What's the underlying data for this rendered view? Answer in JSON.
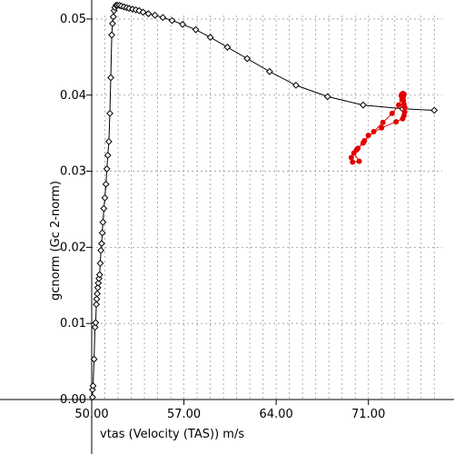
{
  "chart_data": {
    "type": "line",
    "xlabel": "vtas (Velocity (TAS)) m/s",
    "ylabel": "gcnorm (Gc 2-norm)",
    "xlim": [
      50.0,
      76.6
    ],
    "ylim": [
      0.0,
      0.0525
    ],
    "x_ticks": [
      "50.00",
      "57.00",
      "64.00",
      "71.00"
    ],
    "y_ticks": [
      "0.00",
      "0.01",
      "0.02",
      "0.03",
      "0.04",
      "0.05"
    ],
    "grid": {
      "x_minor_dashed": true,
      "y_major_dashed": true
    },
    "series": [
      {
        "color": "#000000",
        "marker": "diamond-open",
        "x": [
          50.06,
          50.06,
          50.1,
          50.18,
          50.25,
          50.3,
          50.35,
          50.38,
          50.42,
          50.46,
          50.5,
          50.55,
          50.6,
          50.65,
          50.7,
          50.75,
          50.8,
          50.85,
          50.92,
          51.0,
          51.08,
          51.15,
          51.22,
          51.3,
          51.38,
          51.45,
          51.52,
          51.58,
          51.64,
          51.7,
          51.76,
          51.85,
          51.95,
          52.1,
          52.25,
          52.45,
          52.65,
          52.85,
          53.1,
          53.35,
          53.6,
          53.9,
          54.3,
          54.8,
          55.4,
          56.1,
          56.9,
          57.9,
          59.0,
          60.3,
          61.8,
          63.5,
          65.5,
          67.9,
          70.6,
          73.6,
          76.0
        ],
        "y": [
          0.0003,
          0.0013,
          0.0018,
          0.0053,
          0.0095,
          0.0101,
          0.0125,
          0.0132,
          0.0139,
          0.0147,
          0.0153,
          0.0159,
          0.0164,
          0.0179,
          0.0196,
          0.0205,
          0.0219,
          0.0233,
          0.0251,
          0.0265,
          0.0283,
          0.0303,
          0.0321,
          0.0339,
          0.0376,
          0.0423,
          0.0479,
          0.0494,
          0.0503,
          0.0511,
          0.0515,
          0.0518,
          0.0518,
          0.0518,
          0.0517,
          0.0516,
          0.0515,
          0.0514,
          0.0513,
          0.0512,
          0.0511,
          0.0509,
          0.0507,
          0.0505,
          0.0502,
          0.0498,
          0.0493,
          0.0486,
          0.0476,
          0.0463,
          0.0448,
          0.0431,
          0.0413,
          0.0398,
          0.0387,
          0.0382,
          0.038
        ]
      },
      {
        "color": "#e00000",
        "marker": "circle-filled",
        "x": [
          69.8,
          70.3,
          69.9,
          70.2,
          70.6,
          71.0,
          72.0,
          73.1,
          73.6,
          73.7,
          73.75,
          73.75,
          73.7,
          73.65,
          73.6,
          73.55,
          73.5,
          73.5,
          73.55,
          73.6,
          73.65,
          73.7,
          73.65,
          73.55,
          73.3,
          72.8,
          72.1,
          71.4,
          70.7,
          70.1,
          69.7
        ],
        "y": [
          0.0312,
          0.0313,
          0.0324,
          0.033,
          0.0337,
          0.0347,
          0.0357,
          0.0365,
          0.0369,
          0.0373,
          0.0378,
          0.0384,
          0.0388,
          0.0393,
          0.0396,
          0.0398,
          0.0399,
          0.04,
          0.0401,
          0.0402,
          0.0402,
          0.0401,
          0.0398,
          0.0394,
          0.0387,
          0.0376,
          0.0364,
          0.0352,
          0.034,
          0.0328,
          0.0318
        ]
      }
    ]
  }
}
